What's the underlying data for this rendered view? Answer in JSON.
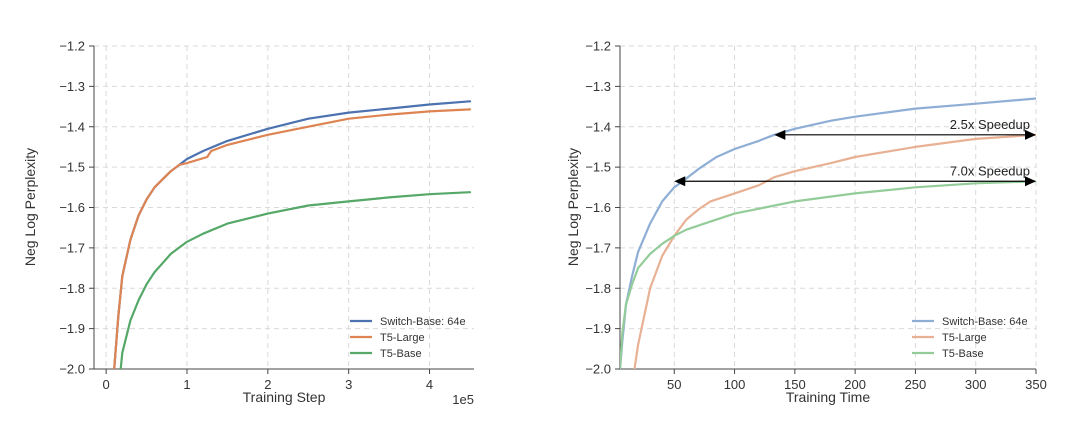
{
  "chart_data": [
    {
      "type": "line",
      "xlabel": "Training Step",
      "ylabel": "Neg Log Perplexity",
      "x_offset_label": "1e5",
      "xlim": [
        -0.15,
        4.55
      ],
      "ylim": [
        -2.0,
        -1.2
      ],
      "xticks": [
        0,
        1,
        2,
        3,
        4
      ],
      "yticks": [
        -2.0,
        -1.9,
        -1.8,
        -1.7,
        -1.6,
        -1.5,
        -1.4,
        -1.3,
        -1.2
      ],
      "grid": true,
      "legend_position": "bottom-right",
      "series": [
        {
          "name": "Switch-Base: 64e",
          "color": "#4c72b0",
          "x": [
            0.1,
            0.15,
            0.2,
            0.3,
            0.4,
            0.5,
            0.6,
            0.7,
            0.8,
            0.9,
            1.0,
            1.2,
            1.5,
            2.0,
            2.5,
            3.0,
            3.5,
            4.0,
            4.5
          ],
          "y": [
            -2.0,
            -1.87,
            -1.77,
            -1.68,
            -1.62,
            -1.58,
            -1.55,
            -1.53,
            -1.51,
            -1.495,
            -1.48,
            -1.46,
            -1.435,
            -1.405,
            -1.38,
            -1.365,
            -1.355,
            -1.345,
            -1.337
          ]
        },
        {
          "name": "T5-Large",
          "color": "#dd8452",
          "x": [
            0.1,
            0.15,
            0.2,
            0.3,
            0.4,
            0.5,
            0.6,
            0.7,
            0.8,
            0.9,
            1.0,
            1.25,
            1.3,
            1.5,
            2.0,
            2.5,
            3.0,
            3.5,
            4.0,
            4.5
          ],
          "y": [
            -2.0,
            -1.87,
            -1.77,
            -1.68,
            -1.62,
            -1.58,
            -1.55,
            -1.53,
            -1.51,
            -1.495,
            -1.49,
            -1.475,
            -1.46,
            -1.445,
            -1.42,
            -1.4,
            -1.38,
            -1.37,
            -1.362,
            -1.357
          ]
        },
        {
          "name": "T5-Base",
          "color": "#55a868",
          "x": [
            0.18,
            0.2,
            0.3,
            0.4,
            0.5,
            0.6,
            0.8,
            1.0,
            1.2,
            1.5,
            2.0,
            2.5,
            3.0,
            3.5,
            4.0,
            4.5
          ],
          "y": [
            -2.0,
            -1.96,
            -1.88,
            -1.83,
            -1.79,
            -1.76,
            -1.715,
            -1.685,
            -1.665,
            -1.64,
            -1.615,
            -1.595,
            -1.585,
            -1.575,
            -1.567,
            -1.562
          ]
        }
      ]
    },
    {
      "type": "line",
      "xlabel": "Training Time",
      "ylabel": "Neg Log Perplexity",
      "xlim": [
        5,
        350
      ],
      "ylim": [
        -2.0,
        -1.2
      ],
      "xticks": [
        50,
        100,
        150,
        200,
        250,
        300,
        350
      ],
      "yticks": [
        -2.0,
        -1.9,
        -1.8,
        -1.7,
        -1.6,
        -1.5,
        -1.4,
        -1.3,
        -1.2
      ],
      "grid": true,
      "legend_position": "bottom-right",
      "series": [
        {
          "name": "Switch-Base: 64e",
          "color": "#8faed6",
          "x": [
            5,
            7,
            10,
            15,
            20,
            30,
            40,
            50,
            57,
            70,
            85,
            100,
            120,
            133,
            150,
            180,
            200,
            250,
            300,
            350
          ],
          "y": [
            -2.0,
            -1.93,
            -1.84,
            -1.77,
            -1.71,
            -1.64,
            -1.585,
            -1.55,
            -1.535,
            -1.505,
            -1.475,
            -1.455,
            -1.435,
            -1.42,
            -1.405,
            -1.385,
            -1.375,
            -1.355,
            -1.343,
            -1.33
          ]
        },
        {
          "name": "T5-Large",
          "color": "#e8b194",
          "x": [
            17,
            20,
            25,
            30,
            40,
            50,
            60,
            70,
            80,
            100,
            120,
            133,
            150,
            180,
            200,
            250,
            300,
            350
          ],
          "y": [
            -2.0,
            -1.94,
            -1.87,
            -1.8,
            -1.72,
            -1.67,
            -1.63,
            -1.605,
            -1.585,
            -1.565,
            -1.545,
            -1.525,
            -1.51,
            -1.49,
            -1.475,
            -1.45,
            -1.43,
            -1.42
          ]
        },
        {
          "name": "T5-Base",
          "color": "#94cc99",
          "x": [
            5,
            7,
            10,
            15,
            20,
            30,
            40,
            50,
            60,
            75,
            100,
            125,
            150,
            200,
            250,
            300,
            350
          ],
          "y": [
            -2.0,
            -1.91,
            -1.84,
            -1.79,
            -1.75,
            -1.715,
            -1.69,
            -1.67,
            -1.655,
            -1.64,
            -1.615,
            -1.6,
            -1.585,
            -1.565,
            -1.55,
            -1.54,
            -1.535
          ]
        }
      ],
      "annotations": [
        {
          "text": "2.5x Speedup",
          "x_start": 133,
          "x_end": 350,
          "y": -1.42
        },
        {
          "text": "7.0x Speedup",
          "x_start": 50,
          "x_end": 350,
          "y": -1.535
        }
      ]
    }
  ]
}
